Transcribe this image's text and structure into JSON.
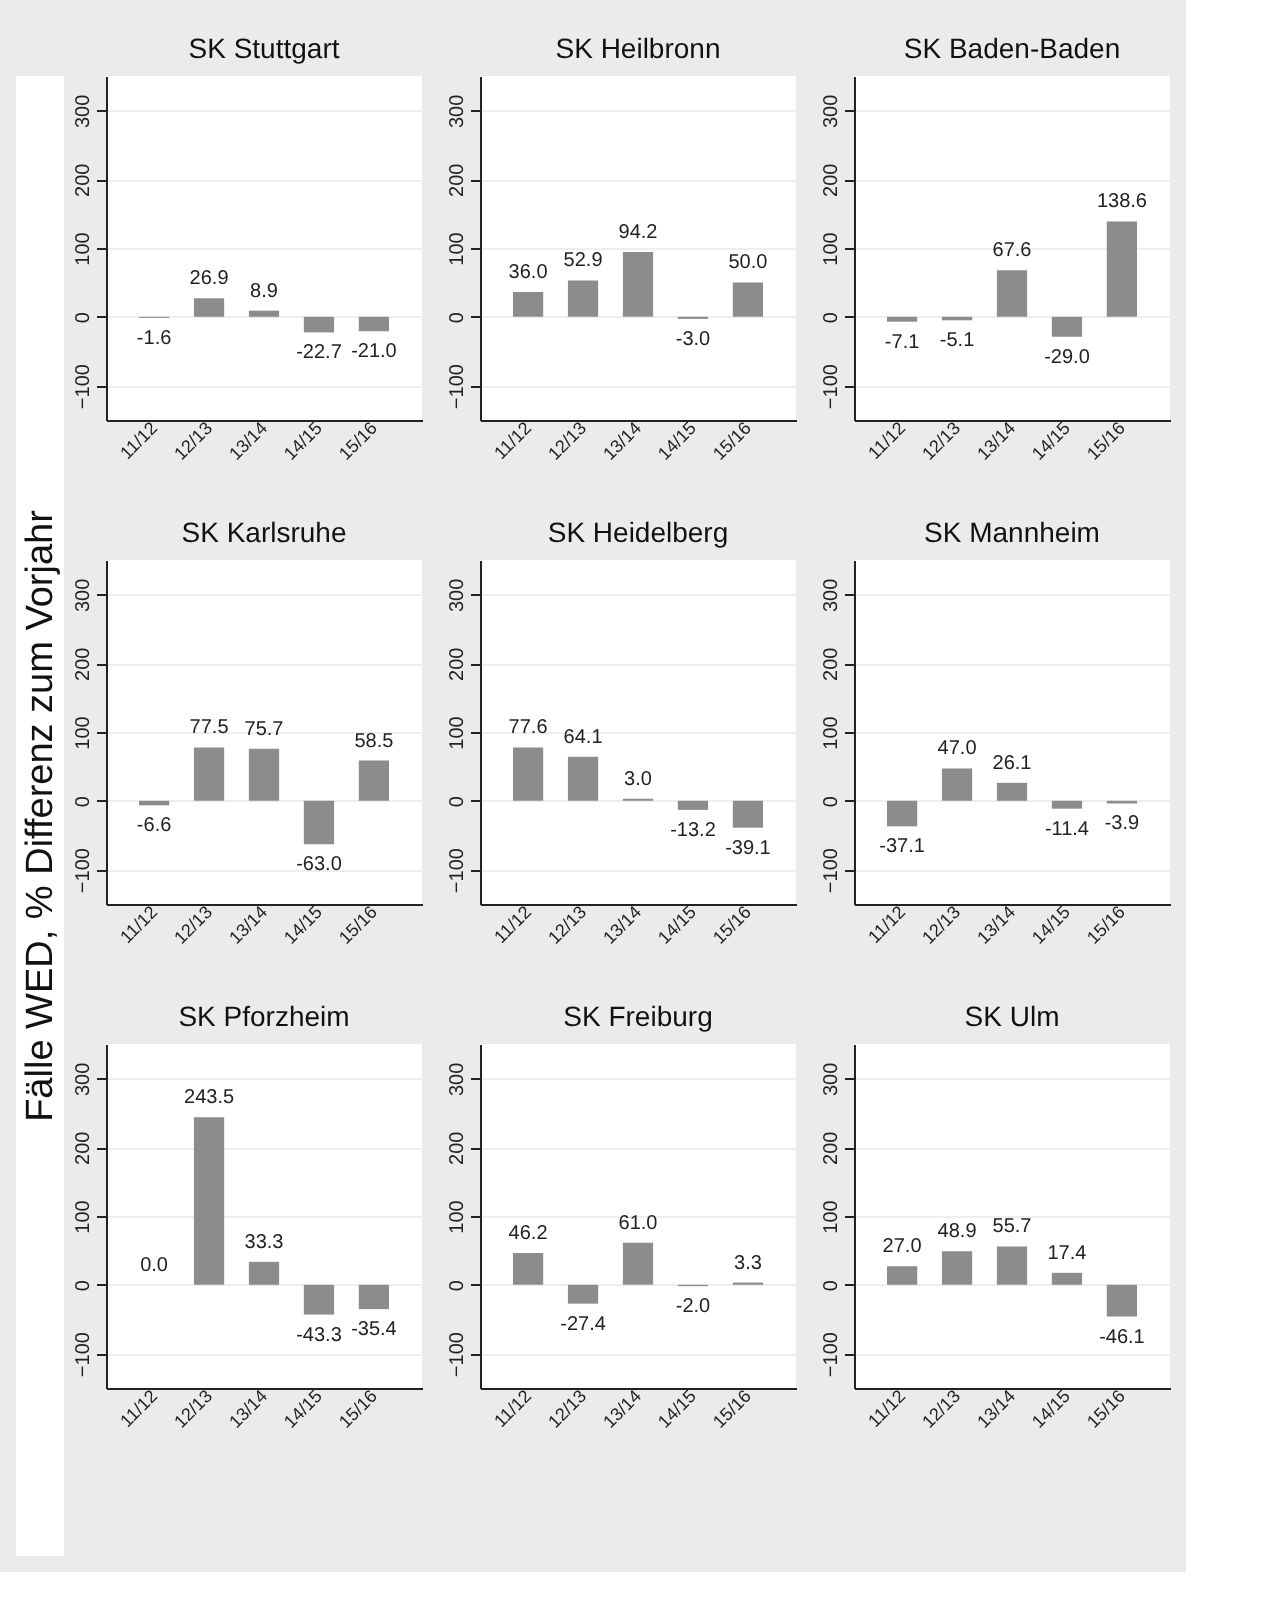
{
  "chart_data": [
    {
      "type": "bar",
      "title": "SK Stuttgart",
      "categories": [
        "11/12",
        "12/13",
        "13/14",
        "14/15",
        "15/16"
      ],
      "values": [
        -1.6,
        26.9,
        8.9,
        -22.7,
        -21.0
      ],
      "value_labels": [
        "-1.6",
        "26.9",
        "8.9",
        "-22.7",
        "-21.0"
      ],
      "color": "#8c8c8c",
      "ylim": [
        -150,
        350
      ],
      "yticks": [
        -100,
        0,
        100,
        200,
        300
      ],
      "grid": "y"
    },
    {
      "type": "bar",
      "title": "SK Heilbronn",
      "categories": [
        "11/12",
        "12/13",
        "13/14",
        "14/15",
        "15/16"
      ],
      "values": [
        36.0,
        52.9,
        94.2,
        -3.0,
        50.0
      ],
      "value_labels": [
        "36.0",
        "52.9",
        "94.2",
        "-3.0",
        "50.0"
      ],
      "color": "#8c8c8c",
      "ylim": [
        -150,
        350
      ],
      "yticks": [
        -100,
        0,
        100,
        200,
        300
      ],
      "grid": "y"
    },
    {
      "type": "bar",
      "title": "SK Baden-Baden",
      "categories": [
        "11/12",
        "12/13",
        "13/14",
        "14/15",
        "15/16"
      ],
      "values": [
        -7.1,
        -5.1,
        67.6,
        -29.0,
        138.6
      ],
      "value_labels": [
        "-7.1",
        "-5.1",
        "67.6",
        "-29.0",
        "138.6"
      ],
      "color": "#8c8c8c",
      "ylim": [
        -150,
        350
      ],
      "yticks": [
        -100,
        0,
        100,
        200,
        300
      ],
      "grid": "y"
    },
    {
      "type": "bar",
      "title": "SK Karlsruhe",
      "ylabel": "Fälle WED, % Differenz zum Vorjahr",
      "categories": [
        "11/12",
        "12/13",
        "13/14",
        "14/15",
        "15/16"
      ],
      "values": [
        -6.6,
        77.5,
        75.7,
        -63.0,
        58.5
      ],
      "value_labels": [
        "-6.6",
        "77.5",
        "75.7",
        "-63.0",
        "58.5"
      ],
      "color": "#8c8c8c",
      "ylim": [
        -150,
        350
      ],
      "yticks": [
        -100,
        0,
        100,
        200,
        300
      ],
      "grid": "y"
    },
    {
      "type": "bar",
      "title": "SK Heidelberg",
      "categories": [
        "11/12",
        "12/13",
        "13/14",
        "14/15",
        "15/16"
      ],
      "values": [
        77.6,
        64.1,
        3.0,
        -13.2,
        -39.1
      ],
      "value_labels": [
        "77.6",
        "64.1",
        "3.0",
        "-13.2",
        "-39.1"
      ],
      "color": "#8c8c8c",
      "ylim": [
        -150,
        350
      ],
      "yticks": [
        -100,
        0,
        100,
        200,
        300
      ],
      "grid": "y"
    },
    {
      "type": "bar",
      "title": "SK Mannheim",
      "categories": [
        "11/12",
        "12/13",
        "13/14",
        "14/15",
        "15/16"
      ],
      "values": [
        -37.1,
        47.0,
        26.1,
        -11.4,
        -3.9
      ],
      "value_labels": [
        "-37.1",
        "47.0",
        "26.1",
        "-11.4",
        "-3.9"
      ],
      "color": "#8c8c8c",
      "ylim": [
        -150,
        350
      ],
      "yticks": [
        -100,
        0,
        100,
        200,
        300
      ],
      "grid": "y"
    },
    {
      "type": "bar",
      "title": "SK Pforzheim",
      "categories": [
        "11/12",
        "12/13",
        "13/14",
        "14/15",
        "15/16"
      ],
      "values": [
        0.0,
        243.5,
        33.3,
        -43.3,
        -35.4
      ],
      "value_labels": [
        "0.0",
        "243.5",
        "33.3",
        "-43.3",
        "-35.4"
      ],
      "color": "#8c8c8c",
      "ylim": [
        -150,
        350
      ],
      "yticks": [
        -100,
        0,
        100,
        200,
        300
      ],
      "grid": "y"
    },
    {
      "type": "bar",
      "title": "SK Freiburg",
      "categories": [
        "11/12",
        "12/13",
        "13/14",
        "14/15",
        "15/16"
      ],
      "values": [
        46.2,
        -27.4,
        61.0,
        -2.0,
        3.3
      ],
      "value_labels": [
        "46.2",
        "-27.4",
        "61.0",
        "-2.0",
        "3.3"
      ],
      "color": "#8c8c8c",
      "ylim": [
        -150,
        350
      ],
      "yticks": [
        -100,
        0,
        100,
        200,
        300
      ],
      "grid": "y"
    },
    {
      "type": "bar",
      "title": "SK Ulm",
      "categories": [
        "11/12",
        "12/13",
        "13/14",
        "14/15",
        "15/16"
      ],
      "values": [
        27.0,
        48.9,
        55.7,
        17.4,
        -46.1
      ],
      "value_labels": [
        "27.0",
        "48.9",
        "55.7",
        "17.4",
        "-46.1"
      ],
      "color": "#8c8c8c",
      "ylim": [
        -150,
        350
      ],
      "yticks": [
        -100,
        0,
        100,
        200,
        300
      ],
      "grid": "y"
    }
  ]
}
